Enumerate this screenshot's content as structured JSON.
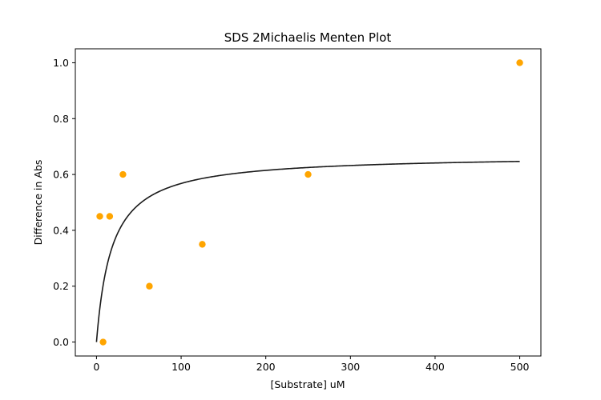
{
  "chart_data": {
    "type": "scatter",
    "title": "SDS 2Michaelis Menten Plot",
    "xlabel": "[Substrate] uM",
    "ylabel": "Difference in Abs",
    "xlim": [
      -25,
      525
    ],
    "ylim": [
      -0.05,
      1.05
    ],
    "xticks": [
      0,
      100,
      200,
      300,
      400,
      500
    ],
    "yticks": [
      0.0,
      0.2,
      0.4,
      0.6,
      0.8,
      1.0
    ],
    "xtick_labels": [
      "0",
      "100",
      "200",
      "300",
      "400",
      "500"
    ],
    "ytick_labels": [
      "0.0",
      "0.2",
      "0.4",
      "0.6",
      "0.8",
      "1.0"
    ],
    "grid": false,
    "series": [
      {
        "kind": "scatter",
        "color": "#FFA500",
        "x": [
          3.9,
          7.8,
          15.6,
          31.25,
          62.5,
          125,
          250,
          500
        ],
        "y": [
          0.45,
          0.0,
          0.45,
          0.6,
          0.2,
          0.35,
          0.6,
          1.0
        ]
      },
      {
        "kind": "line",
        "color": "#1a1a1a",
        "model": "michaelis-menten",
        "vmax": 0.67,
        "km": 18,
        "x_range": [
          0,
          500
        ]
      }
    ]
  }
}
